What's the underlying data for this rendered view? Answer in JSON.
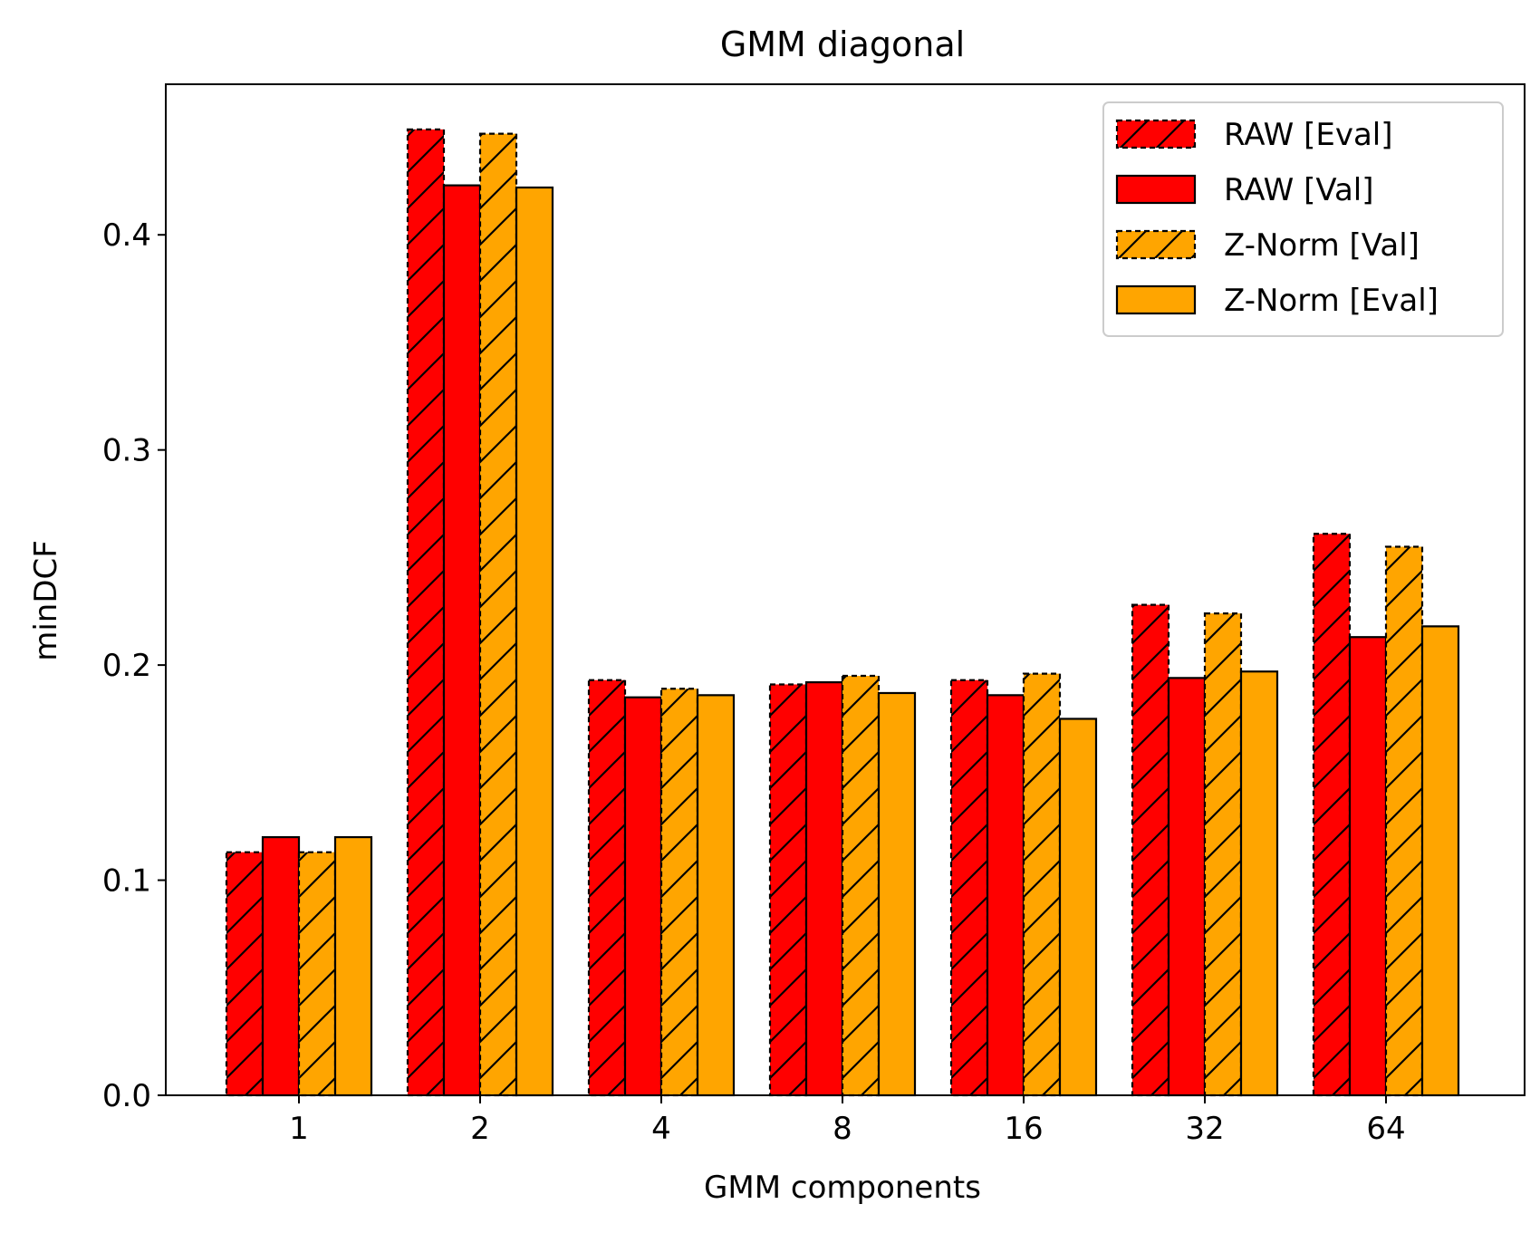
{
  "chart_data": {
    "type": "bar",
    "title": "GMM diagonal",
    "xlabel": "GMM components",
    "ylabel": "minDCF",
    "categories": [
      "1",
      "2",
      "4",
      "8",
      "16",
      "32",
      "64"
    ],
    "ylim": [
      0.0,
      0.47
    ],
    "yticks": [
      "0.0",
      "0.1",
      "0.2",
      "0.3",
      "0.4"
    ],
    "grid": false,
    "legend_position": "top-right",
    "series": [
      {
        "name": "RAW [Eval]",
        "color": "#ff0000",
        "hatch": true,
        "dashed": true,
        "values": [
          0.113,
          0.449,
          0.193,
          0.191,
          0.193,
          0.228,
          0.261
        ]
      },
      {
        "name": "RAW [Val]",
        "color": "#ff0000",
        "hatch": false,
        "dashed": false,
        "values": [
          0.12,
          0.423,
          0.185,
          0.192,
          0.186,
          0.194,
          0.213
        ]
      },
      {
        "name": "Z-Norm [Val]",
        "color": "#ffa500",
        "hatch": true,
        "dashed": true,
        "values": [
          0.113,
          0.447,
          0.189,
          0.195,
          0.196,
          0.224,
          0.255
        ]
      },
      {
        "name": "Z-Norm [Eval]",
        "color": "#ffa500",
        "hatch": false,
        "dashed": false,
        "values": [
          0.12,
          0.422,
          0.186,
          0.187,
          0.175,
          0.197,
          0.218
        ]
      }
    ]
  }
}
